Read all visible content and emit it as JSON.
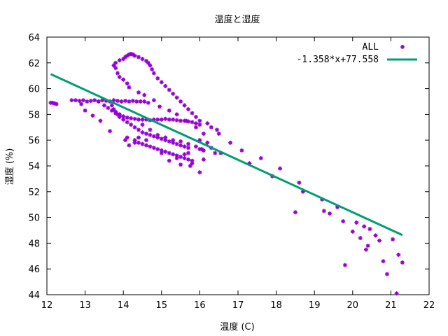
{
  "chart_data": {
    "type": "scatter",
    "title": "温度と湿度",
    "xlabel": "温度 (C)",
    "ylabel": "湿度 (%)",
    "xlim": [
      12,
      22
    ],
    "ylim": [
      44,
      64
    ],
    "xticks": [
      12,
      13,
      14,
      15,
      16,
      17,
      18,
      19,
      20,
      21,
      22
    ],
    "yticks": [
      44,
      46,
      48,
      50,
      52,
      54,
      56,
      58,
      60,
      62,
      64
    ],
    "grid": false,
    "legend_position": "top-right",
    "series": [
      {
        "name": "ALL",
        "kind": "points",
        "color": "#9400d3",
        "points": [
          [
            12.1,
            58.9
          ],
          [
            12.15,
            58.9
          ],
          [
            12.2,
            58.85
          ],
          [
            12.25,
            58.8
          ],
          [
            12.65,
            59.1
          ],
          [
            12.75,
            59.1
          ],
          [
            12.85,
            59.05
          ],
          [
            12.95,
            59.1
          ],
          [
            13.05,
            59.0
          ],
          [
            13.15,
            59.05
          ],
          [
            13.25,
            59.1
          ],
          [
            13.35,
            59.0
          ],
          [
            13.45,
            59.1
          ],
          [
            13.55,
            59.05
          ],
          [
            13.65,
            59.0
          ],
          [
            13.75,
            59.1
          ],
          [
            13.85,
            59.05
          ],
          [
            13.95,
            59.0
          ],
          [
            14.05,
            59.05
          ],
          [
            14.15,
            59.0
          ],
          [
            14.25,
            59.05
          ],
          [
            14.35,
            59.0
          ],
          [
            14.45,
            59.0
          ],
          [
            14.55,
            59.0
          ],
          [
            14.65,
            58.9
          ],
          [
            12.9,
            58.8
          ],
          [
            13.0,
            58.3
          ],
          [
            13.2,
            57.9
          ],
          [
            13.4,
            57.5
          ],
          [
            13.65,
            56.7
          ],
          [
            13.8,
            58.1
          ],
          [
            13.9,
            58.0
          ],
          [
            14.05,
            56.0
          ],
          [
            14.1,
            56.2
          ],
          [
            14.3,
            55.8
          ],
          [
            14.15,
            55.6
          ],
          [
            13.35,
            59.0
          ],
          [
            13.5,
            58.7
          ],
          [
            13.6,
            58.5
          ],
          [
            13.7,
            58.3
          ],
          [
            13.8,
            58.1
          ],
          [
            13.9,
            57.95
          ],
          [
            14.0,
            57.85
          ],
          [
            14.1,
            57.75
          ],
          [
            14.2,
            57.7
          ],
          [
            14.3,
            57.65
          ],
          [
            14.4,
            57.6
          ],
          [
            14.5,
            57.6
          ],
          [
            14.6,
            57.6
          ],
          [
            14.7,
            57.55
          ],
          [
            14.8,
            57.6
          ],
          [
            14.9,
            57.6
          ],
          [
            15.0,
            57.6
          ],
          [
            15.1,
            57.65
          ],
          [
            15.2,
            57.6
          ],
          [
            15.3,
            57.6
          ],
          [
            15.4,
            57.55
          ],
          [
            15.5,
            57.5
          ],
          [
            15.6,
            57.5
          ],
          [
            15.7,
            57.45
          ],
          [
            15.8,
            57.4
          ],
          [
            15.9,
            57.3
          ],
          [
            16.0,
            57.2
          ],
          [
            13.7,
            58.7
          ],
          [
            13.75,
            58.4
          ],
          [
            13.8,
            58.2
          ],
          [
            13.85,
            58.0
          ],
          [
            13.9,
            57.8
          ],
          [
            14.0,
            57.6
          ],
          [
            14.1,
            57.4
          ],
          [
            14.2,
            57.2
          ],
          [
            14.3,
            57.0
          ],
          [
            14.4,
            56.8
          ],
          [
            14.5,
            56.6
          ],
          [
            14.6,
            56.5
          ],
          [
            14.7,
            56.4
          ],
          [
            14.8,
            56.3
          ],
          [
            14.9,
            56.2
          ],
          [
            15.0,
            56.1
          ],
          [
            15.1,
            56.0
          ],
          [
            15.2,
            55.9
          ],
          [
            15.3,
            55.8
          ],
          [
            15.4,
            55.7
          ],
          [
            15.5,
            55.6
          ],
          [
            15.6,
            55.5
          ],
          [
            15.7,
            55.4
          ],
          [
            14.3,
            56.0
          ],
          [
            14.4,
            55.8
          ],
          [
            14.5,
            55.7
          ],
          [
            14.6,
            55.6
          ],
          [
            14.7,
            55.5
          ],
          [
            14.8,
            55.4
          ],
          [
            14.9,
            55.3
          ],
          [
            15.0,
            55.2
          ],
          [
            15.1,
            55.1
          ],
          [
            15.2,
            55.0
          ],
          [
            15.3,
            54.9
          ],
          [
            15.4,
            54.8
          ],
          [
            15.5,
            54.7
          ],
          [
            15.6,
            54.6
          ],
          [
            15.7,
            54.5
          ],
          [
            15.8,
            54.4
          ],
          [
            15.8,
            54.2
          ],
          [
            14.4,
            56.2
          ],
          [
            14.6,
            56.0
          ],
          [
            15.0,
            55.0
          ],
          [
            15.2,
            54.4
          ],
          [
            15.4,
            54.6
          ],
          [
            15.6,
            54.9
          ],
          [
            15.7,
            55.0
          ],
          [
            15.5,
            54.1
          ],
          [
            15.75,
            54.0
          ],
          [
            13.75,
            61.8
          ],
          [
            13.8,
            62.0
          ],
          [
            13.9,
            62.2
          ],
          [
            14.0,
            62.3
          ],
          [
            14.05,
            62.45
          ],
          [
            14.1,
            62.55
          ],
          [
            14.15,
            62.65
          ],
          [
            14.2,
            62.7
          ],
          [
            14.25,
            62.65
          ],
          [
            14.3,
            62.55
          ],
          [
            14.4,
            62.45
          ],
          [
            14.5,
            62.3
          ],
          [
            14.6,
            62.15
          ],
          [
            14.65,
            62.0
          ],
          [
            14.7,
            61.8
          ],
          [
            14.75,
            61.5
          ],
          [
            14.8,
            61.2
          ],
          [
            14.9,
            60.8
          ],
          [
            15.0,
            60.5
          ],
          [
            15.1,
            60.2
          ],
          [
            15.2,
            59.9
          ],
          [
            15.3,
            59.6
          ],
          [
            15.4,
            59.3
          ],
          [
            15.5,
            59.0
          ],
          [
            15.6,
            58.7
          ],
          [
            15.7,
            58.4
          ],
          [
            15.8,
            58.1
          ],
          [
            15.9,
            57.8
          ],
          [
            16.0,
            57.5
          ],
          [
            13.8,
            61.6
          ],
          [
            13.85,
            61.2
          ],
          [
            13.9,
            60.9
          ],
          [
            14.0,
            60.7
          ],
          [
            14.1,
            60.4
          ],
          [
            14.15,
            60.1
          ],
          [
            14.4,
            59.7
          ],
          [
            14.55,
            59.5
          ],
          [
            14.8,
            59.1
          ],
          [
            14.95,
            58.6
          ],
          [
            15.2,
            58.3
          ],
          [
            15.4,
            58.0
          ],
          [
            15.65,
            57.5
          ],
          [
            15.9,
            57.0
          ],
          [
            16.1,
            56.5
          ],
          [
            16.0,
            56.0
          ],
          [
            16.2,
            55.8
          ],
          [
            16.3,
            55.4
          ],
          [
            16.1,
            55.2
          ],
          [
            16.0,
            55.3
          ],
          [
            16.4,
            55.0
          ],
          [
            14.5,
            57.2
          ],
          [
            14.7,
            56.8
          ],
          [
            14.9,
            56.4
          ],
          [
            15.1,
            56.2
          ],
          [
            15.3,
            56.0
          ],
          [
            15.5,
            55.9
          ],
          [
            15.7,
            55.7
          ],
          [
            15.9,
            55.5
          ],
          [
            16.05,
            55.3
          ],
          [
            16.1,
            54.5
          ],
          [
            16.0,
            53.5
          ],
          [
            16.2,
            57.3
          ],
          [
            16.3,
            57.0
          ],
          [
            16.45,
            56.8
          ],
          [
            16.5,
            56.5
          ],
          [
            16.55,
            55.0
          ],
          [
            16.8,
            55.8
          ],
          [
            17.1,
            55.2
          ],
          [
            17.3,
            54.2
          ],
          [
            17.6,
            54.6
          ],
          [
            17.9,
            53.2
          ],
          [
            18.1,
            53.8
          ],
          [
            18.5,
            50.4
          ],
          [
            18.6,
            52.7
          ],
          [
            18.7,
            52.0
          ],
          [
            19.2,
            51.4
          ],
          [
            19.25,
            50.5
          ],
          [
            19.4,
            50.3
          ],
          [
            19.6,
            50.8
          ],
          [
            19.75,
            49.7
          ],
          [
            19.8,
            46.3
          ],
          [
            20.0,
            48.9
          ],
          [
            20.1,
            49.6
          ],
          [
            20.2,
            48.4
          ],
          [
            20.3,
            49.3
          ],
          [
            20.35,
            47.5
          ],
          [
            20.4,
            47.8
          ],
          [
            20.45,
            49.1
          ],
          [
            20.6,
            48.6
          ],
          [
            20.7,
            48.2
          ],
          [
            20.8,
            46.6
          ],
          [
            20.9,
            45.6
          ],
          [
            21.05,
            48.3
          ],
          [
            21.15,
            44.1
          ],
          [
            21.2,
            47.1
          ],
          [
            21.3,
            46.5
          ]
        ]
      },
      {
        "name": "-1.358*x+77.558",
        "kind": "line",
        "color": "#009e73",
        "slope": -1.358,
        "intercept": 77.558,
        "x_range": [
          12.1,
          21.3
        ]
      }
    ]
  }
}
